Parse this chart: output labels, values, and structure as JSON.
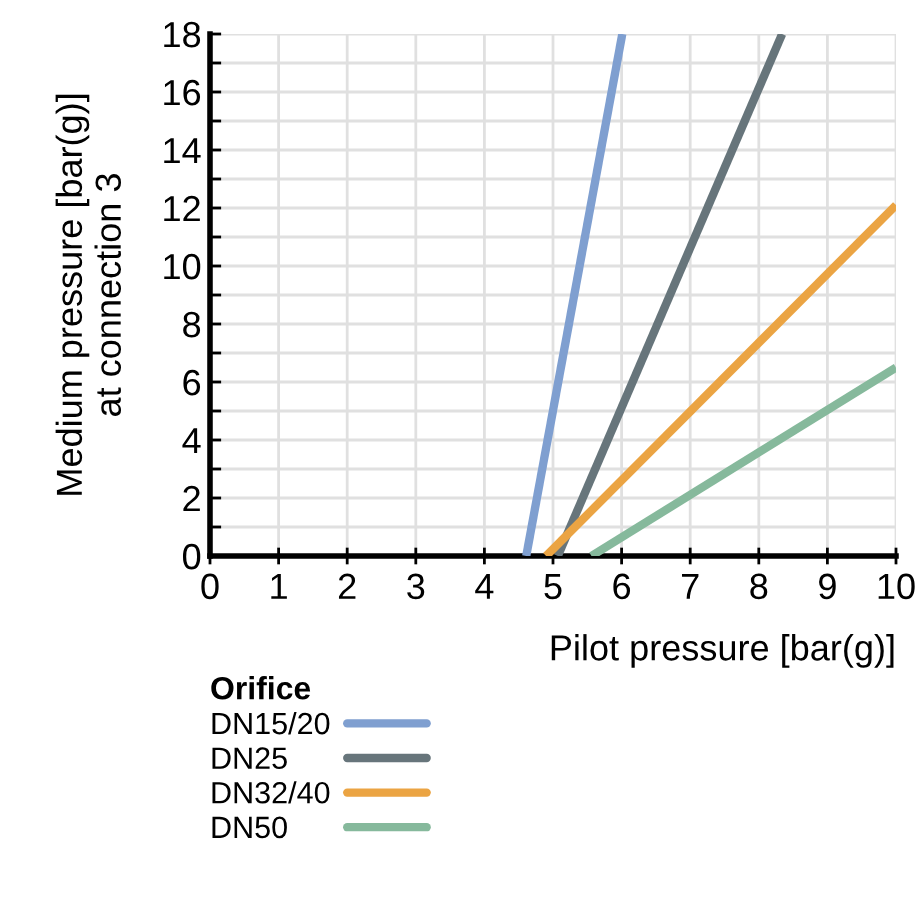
{
  "chart_data": {
    "type": "line",
    "xlabel": "Pilot pressure [bar(g)]",
    "ylabel": "Medium pressure [bar(g)]\nat connection 3",
    "legend_title": "Orifice",
    "xlim": [
      0,
      10
    ],
    "ylim": [
      0,
      18
    ],
    "xticks": [
      0,
      1,
      2,
      3,
      4,
      5,
      6,
      7,
      8,
      9,
      10
    ],
    "yticks": [
      0,
      {
        "value": 1,
        "label": null
      },
      2,
      {
        "value": 3,
        "label": null
      },
      4,
      {
        "value": 5,
        "label": null
      },
      6,
      {
        "value": 7,
        "label": null
      },
      8,
      {
        "value": 9,
        "label": null
      },
      10,
      {
        "value": 11,
        "label": null
      },
      12,
      {
        "value": 13,
        "label": null
      },
      14,
      {
        "value": 15,
        "label": null
      },
      16,
      {
        "value": 17,
        "label": null
      },
      18
    ],
    "grid": true,
    "legend": "bottom",
    "marker": "none",
    "line_style": "solid",
    "series": [
      {
        "name": "DN15/20",
        "color": "#7f9fd0",
        "x": [
          4.61,
          6.01
        ],
        "values": [
          0,
          18
        ]
      },
      {
        "name": "DN25",
        "color": "#67757b",
        "x": [
          5.07,
          8.34
        ],
        "values": [
          0,
          18
        ]
      },
      {
        "name": "DN32/40",
        "color": "#eba443",
        "x": [
          4.9,
          10
        ],
        "values": [
          0,
          12.1
        ]
      },
      {
        "name": "DN50",
        "color": "#86b99c",
        "x": [
          5.56,
          10
        ],
        "values": [
          0,
          6.5
        ]
      }
    ]
  }
}
